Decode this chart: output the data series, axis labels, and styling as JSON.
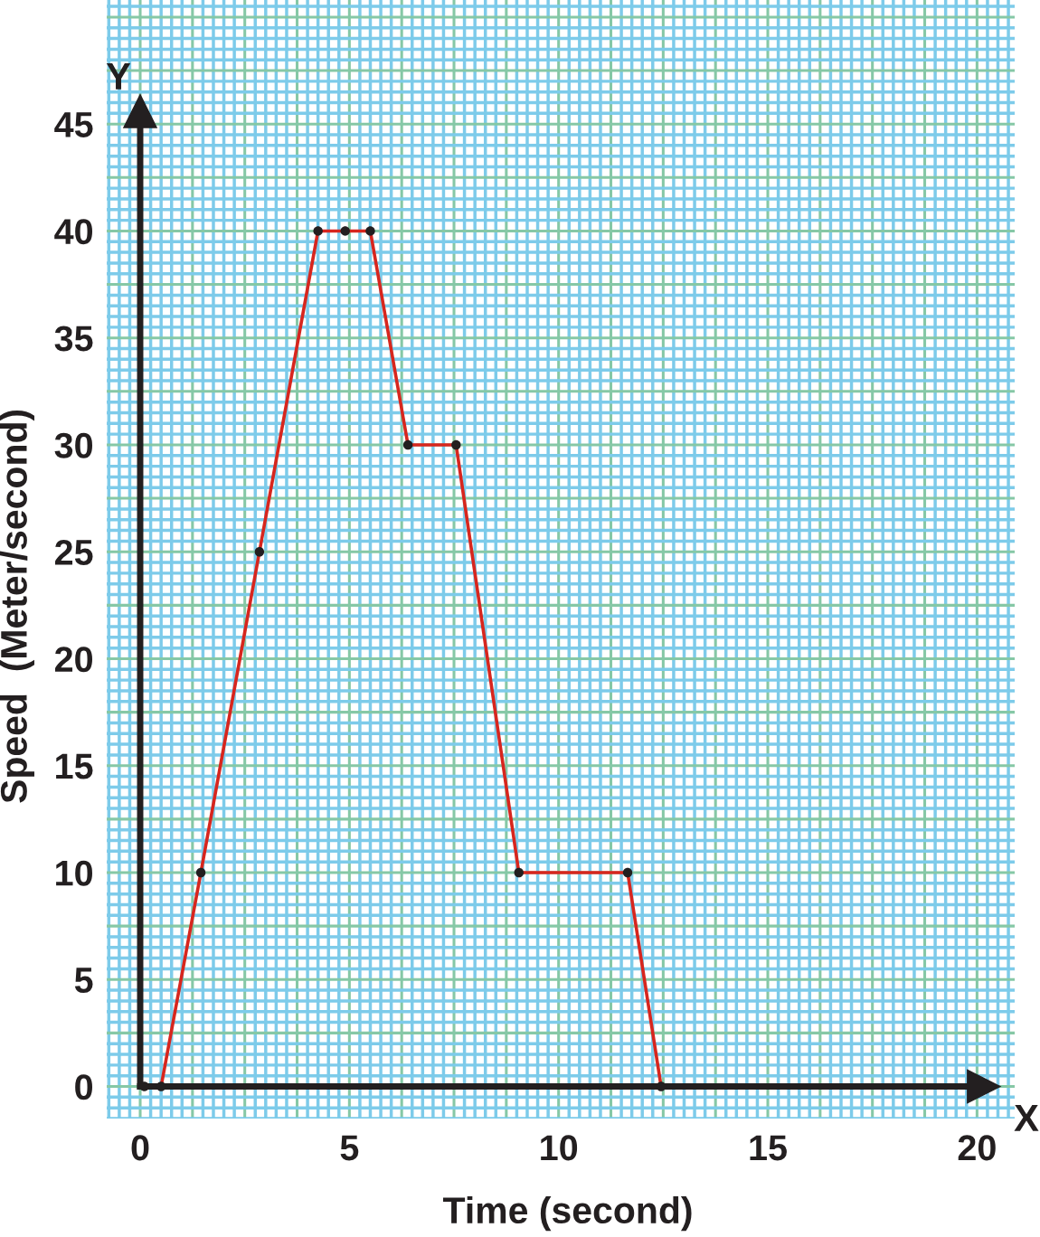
{
  "chart_data": {
    "type": "line",
    "xlabel": "Time (second)",
    "ylabel": "Speed  (Meter/second)",
    "annotations": [
      "Y",
      "X"
    ],
    "xlim": [
      -0.8,
      20.9
    ],
    "ylim": [
      -1.5,
      50.8
    ],
    "xticks": [
      {
        "value": -0.75,
        "label": null
      },
      {
        "value": -0.5,
        "label": null
      },
      {
        "value": -0.25,
        "label": null
      },
      0,
      {
        "value": 0.25,
        "label": null
      },
      {
        "value": 0.5,
        "label": null
      },
      {
        "value": 0.75,
        "label": null
      },
      {
        "value": 1,
        "label": null
      },
      {
        "value": 1.25,
        "label": null
      },
      {
        "value": 1.5,
        "label": null
      },
      {
        "value": 1.75,
        "label": null
      },
      {
        "value": 2,
        "label": null
      },
      {
        "value": 2.25,
        "label": null
      },
      {
        "value": 2.5,
        "label": null
      },
      {
        "value": 2.75,
        "label": null
      },
      {
        "value": 3,
        "label": null
      },
      {
        "value": 3.25,
        "label": null
      },
      {
        "value": 3.5,
        "label": null
      },
      {
        "value": 3.75,
        "label": null
      },
      {
        "value": 4,
        "label": null
      },
      {
        "value": 4.25,
        "label": null
      },
      {
        "value": 4.5,
        "label": null
      },
      {
        "value": 4.75,
        "label": null
      },
      5,
      {
        "value": 5.25,
        "label": null
      },
      {
        "value": 5.5,
        "label": null
      },
      {
        "value": 5.75,
        "label": null
      },
      {
        "value": 6,
        "label": null
      },
      {
        "value": 6.25,
        "label": null
      },
      {
        "value": 6.5,
        "label": null
      },
      {
        "value": 6.75,
        "label": null
      },
      {
        "value": 7,
        "label": null
      },
      {
        "value": 7.25,
        "label": null
      },
      {
        "value": 7.5,
        "label": null
      },
      {
        "value": 7.75,
        "label": null
      },
      {
        "value": 8,
        "label": null
      },
      {
        "value": 8.25,
        "label": null
      },
      {
        "value": 8.5,
        "label": null
      },
      {
        "value": 8.75,
        "label": null
      },
      {
        "value": 9,
        "label": null
      },
      {
        "value": 9.25,
        "label": null
      },
      {
        "value": 9.5,
        "label": null
      },
      {
        "value": 9.75,
        "label": null
      },
      10,
      {
        "value": 10.25,
        "label": null
      },
      {
        "value": 10.5,
        "label": null
      },
      {
        "value": 10.75,
        "label": null
      },
      {
        "value": 11,
        "label": null
      },
      {
        "value": 11.25,
        "label": null
      },
      {
        "value": 11.5,
        "label": null
      },
      {
        "value": 11.75,
        "label": null
      },
      {
        "value": 12,
        "label": null
      },
      {
        "value": 12.25,
        "label": null
      },
      {
        "value": 12.5,
        "label": null
      },
      {
        "value": 12.75,
        "label": null
      },
      {
        "value": 13,
        "label": null
      },
      {
        "value": 13.25,
        "label": null
      },
      {
        "value": 13.5,
        "label": null
      },
      {
        "value": 13.75,
        "label": null
      },
      {
        "value": 14,
        "label": null
      },
      {
        "value": 14.25,
        "label": null
      },
      {
        "value": 14.5,
        "label": null
      },
      {
        "value": 14.75,
        "label": null
      },
      15,
      {
        "value": 15.25,
        "label": null
      },
      {
        "value": 15.5,
        "label": null
      },
      {
        "value": 15.75,
        "label": null
      },
      {
        "value": 16,
        "label": null
      },
      {
        "value": 16.25,
        "label": null
      },
      {
        "value": 16.5,
        "label": null
      },
      {
        "value": 16.75,
        "label": null
      },
      {
        "value": 17,
        "label": null
      },
      {
        "value": 17.25,
        "label": null
      },
      {
        "value": 17.5,
        "label": null
      },
      {
        "value": 17.75,
        "label": null
      },
      {
        "value": 18,
        "label": null
      },
      {
        "value": 18.25,
        "label": null
      },
      {
        "value": 18.5,
        "label": null
      },
      {
        "value": 18.75,
        "label": null
      },
      {
        "value": 19,
        "label": null
      },
      {
        "value": 19.25,
        "label": null
      },
      {
        "value": 19.5,
        "label": null
      },
      {
        "value": 19.75,
        "label": null
      },
      20,
      {
        "value": 20.25,
        "label": null
      },
      {
        "value": 20.5,
        "label": null
      },
      {
        "value": 20.75,
        "label": null
      }
    ],
    "yticks": [
      {
        "value": -1.5,
        "label": null
      },
      {
        "value": -1,
        "label": null
      },
      {
        "value": -0.5,
        "label": null
      },
      0,
      {
        "value": 0.5,
        "label": null
      },
      {
        "value": 1,
        "label": null
      },
      {
        "value": 1.5,
        "label": null
      },
      {
        "value": 2,
        "label": null
      },
      {
        "value": 2.5,
        "label": null
      },
      {
        "value": 3,
        "label": null
      },
      {
        "value": 3.5,
        "label": null
      },
      {
        "value": 4,
        "label": null
      },
      {
        "value": 4.5,
        "label": null
      },
      5,
      {
        "value": 5.5,
        "label": null
      },
      {
        "value": 6,
        "label": null
      },
      {
        "value": 6.5,
        "label": null
      },
      {
        "value": 7,
        "label": null
      },
      {
        "value": 7.5,
        "label": null
      },
      {
        "value": 8,
        "label": null
      },
      {
        "value": 8.5,
        "label": null
      },
      {
        "value": 9,
        "label": null
      },
      {
        "value": 9.5,
        "label": null
      },
      10,
      {
        "value": 10.5,
        "label": null
      },
      {
        "value": 11,
        "label": null
      },
      {
        "value": 11.5,
        "label": null
      },
      {
        "value": 12,
        "label": null
      },
      {
        "value": 12.5,
        "label": null
      },
      {
        "value": 13,
        "label": null
      },
      {
        "value": 13.5,
        "label": null
      },
      {
        "value": 14,
        "label": null
      },
      {
        "value": 14.5,
        "label": null
      },
      15,
      {
        "value": 15.5,
        "label": null
      },
      {
        "value": 16,
        "label": null
      },
      {
        "value": 16.5,
        "label": null
      },
      {
        "value": 17,
        "label": null
      },
      {
        "value": 17.5,
        "label": null
      },
      {
        "value": 18,
        "label": null
      },
      {
        "value": 18.5,
        "label": null
      },
      {
        "value": 19,
        "label": null
      },
      {
        "value": 19.5,
        "label": null
      },
      20,
      {
        "value": 20.5,
        "label": null
      },
      {
        "value": 21,
        "label": null
      },
      {
        "value": 21.5,
        "label": null
      },
      {
        "value": 22,
        "label": null
      },
      {
        "value": 22.5,
        "label": null
      },
      {
        "value": 23,
        "label": null
      },
      {
        "value": 23.5,
        "label": null
      },
      {
        "value": 24,
        "label": null
      },
      {
        "value": 24.5,
        "label": null
      },
      25,
      {
        "value": 25.5,
        "label": null
      },
      {
        "value": 26,
        "label": null
      },
      {
        "value": 26.5,
        "label": null
      },
      {
        "value": 27,
        "label": null
      },
      {
        "value": 27.5,
        "label": null
      },
      {
        "value": 28,
        "label": null
      },
      {
        "value": 28.5,
        "label": null
      },
      {
        "value": 29,
        "label": null
      },
      {
        "value": 29.5,
        "label": null
      },
      30,
      {
        "value": 30.5,
        "label": null
      },
      {
        "value": 31,
        "label": null
      },
      {
        "value": 31.5,
        "label": null
      },
      {
        "value": 32,
        "label": null
      },
      {
        "value": 32.5,
        "label": null
      },
      {
        "value": 33,
        "label": null
      },
      {
        "value": 33.5,
        "label": null
      },
      {
        "value": 34,
        "label": null
      },
      {
        "value": 34.5,
        "label": null
      },
      35,
      {
        "value": 35.5,
        "label": null
      },
      {
        "value": 36,
        "label": null
      },
      {
        "value": 36.5,
        "label": null
      },
      {
        "value": 37,
        "label": null
      },
      {
        "value": 37.5,
        "label": null
      },
      {
        "value": 38,
        "label": null
      },
      {
        "value": 38.5,
        "label": null
      },
      {
        "value": 39,
        "label": null
      },
      {
        "value": 39.5,
        "label": null
      },
      40,
      {
        "value": 40.5,
        "label": null
      },
      {
        "value": 41,
        "label": null
      },
      {
        "value": 41.5,
        "label": null
      },
      {
        "value": 42,
        "label": null
      },
      {
        "value": 42.5,
        "label": null
      },
      {
        "value": 43,
        "label": null
      },
      {
        "value": 43.5,
        "label": null
      },
      {
        "value": 44,
        "label": null
      },
      {
        "value": 44.5,
        "label": null
      },
      45,
      {
        "value": 45.5,
        "label": null
      },
      {
        "value": 46,
        "label": null
      },
      {
        "value": 46.5,
        "label": null
      },
      {
        "value": 47,
        "label": null
      },
      {
        "value": 47.5,
        "label": null
      },
      {
        "value": 48,
        "label": null
      },
      {
        "value": 48.5,
        "label": null
      },
      {
        "value": 49,
        "label": null
      },
      {
        "value": 49.5,
        "label": null
      },
      {
        "value": 50,
        "label": null
      },
      {
        "value": 50.5,
        "label": null
      }
    ],
    "grid": true,
    "marker": "circle",
    "line_style": "solid",
    "series": [
      {
        "type": "scatter",
        "color": "#231f20",
        "x": [
          0.1
        ],
        "values": [
          0
        ]
      },
      {
        "color": "#d7261e",
        "x": [
          0.5,
          1.45,
          2.85,
          4.25,
          4.9,
          5.5,
          6.4,
          7.55,
          9.05,
          11.65,
          12.45
        ],
        "values": [
          0,
          10,
          25,
          40,
          40,
          40,
          30,
          30,
          10,
          10,
          0
        ]
      }
    ]
  }
}
